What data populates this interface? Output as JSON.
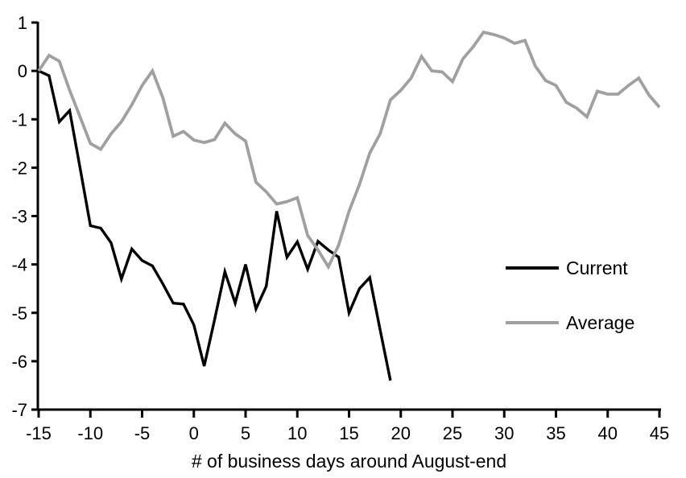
{
  "chart_data": {
    "type": "line",
    "title": "",
    "xlabel": "# of business days around August-end",
    "ylabel": "",
    "xlim": [
      -15,
      45
    ],
    "ylim": [
      -7,
      1
    ],
    "xtick_step": 5,
    "ytick_step": 1,
    "grid": false,
    "legend_position": "right-middle",
    "series": [
      {
        "name": "Current",
        "color": "#000000",
        "stroke_width": 3.4,
        "x": [
          -15,
          -14,
          -13,
          -12,
          -11,
          -10,
          -9,
          -8,
          -7,
          -6,
          -5,
          -4,
          -3,
          -2,
          -1,
          0,
          1,
          2,
          3,
          4,
          5,
          6,
          7,
          8,
          9,
          10,
          11,
          12,
          13,
          14,
          15,
          16,
          17,
          18,
          19
        ],
        "values": [
          0,
          -0.1,
          -1.05,
          -0.82,
          -2.0,
          -3.2,
          -3.25,
          -3.55,
          -4.3,
          -3.68,
          -3.92,
          -4.03,
          -4.4,
          -4.8,
          -4.82,
          -5.25,
          -6.1,
          -5.15,
          -4.15,
          -4.8,
          -4.0,
          -4.92,
          -4.45,
          -2.9,
          -3.85,
          -3.53,
          -4.1,
          -3.52,
          -3.7,
          -3.85,
          -5.0,
          -4.5,
          -4.27,
          -5.35,
          -6.4
        ]
      },
      {
        "name": "Average",
        "color": "#a0a0a0",
        "stroke_width": 3.8,
        "x": [
          -15,
          -14,
          -13,
          -12,
          -11,
          -10,
          -9,
          -8,
          -7,
          -6,
          -5,
          -4,
          -3,
          -2,
          -1,
          0,
          1,
          2,
          3,
          4,
          5,
          6,
          7,
          8,
          9,
          10,
          11,
          12,
          13,
          14,
          15,
          16,
          17,
          18,
          19,
          20,
          21,
          22,
          23,
          24,
          25,
          26,
          27,
          28,
          29,
          30,
          31,
          32,
          33,
          34,
          35,
          36,
          37,
          38,
          39,
          40,
          41,
          42,
          43,
          44,
          45
        ],
        "values": [
          0,
          0.32,
          0.2,
          -0.4,
          -0.95,
          -1.5,
          -1.62,
          -1.3,
          -1.05,
          -0.7,
          -0.3,
          0.0,
          -0.55,
          -1.35,
          -1.25,
          -1.43,
          -1.48,
          -1.42,
          -1.08,
          -1.3,
          -1.45,
          -2.3,
          -2.5,
          -2.75,
          -2.7,
          -2.62,
          -3.4,
          -3.7,
          -4.05,
          -3.6,
          -2.9,
          -2.35,
          -1.7,
          -1.3,
          -0.6,
          -0.4,
          -0.15,
          0.3,
          0.0,
          -0.02,
          -0.22,
          0.25,
          0.5,
          0.8,
          0.75,
          0.68,
          0.57,
          0.63,
          0.1,
          -0.2,
          -0.3,
          -0.65,
          -0.77,
          -0.95,
          -0.42,
          -0.48,
          -0.48,
          -0.3,
          -0.15,
          -0.5,
          -0.75
        ]
      }
    ]
  },
  "colors": {
    "background": "#ffffff",
    "axis": "#000000",
    "text": "#000000"
  }
}
